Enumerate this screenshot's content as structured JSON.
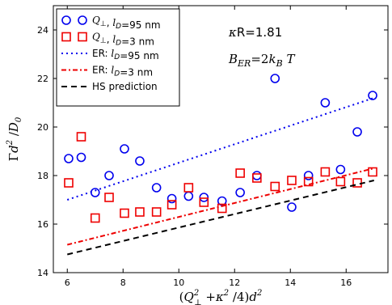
{
  "chart_data": {
    "type": "scatter",
    "xlabel": "(Q⊥² + κ²/4)d²",
    "ylabel": "Γd² / D₀",
    "xlim": [
      5.5,
      17.5
    ],
    "ylim": [
      14,
      25
    ],
    "xticks": [
      6,
      8,
      10,
      12,
      14,
      16
    ],
    "yticks": [
      14,
      16,
      18,
      20,
      22,
      24
    ],
    "grid": false,
    "legend_position": "top-left",
    "annotations": [
      "κR=1.81",
      "B_ER=2k_B T"
    ],
    "colors": {
      "blue": "#0000ee",
      "red": "#ee0000",
      "black": "#000000"
    },
    "series": [
      {
        "name": "Q⊥, l_D=95 nm",
        "marker": "circle",
        "color": "#0000ee",
        "points": [
          [
            6.05,
            18.7
          ],
          [
            6.5,
            18.75
          ],
          [
            7.0,
            17.3
          ],
          [
            7.5,
            18.0
          ],
          [
            8.05,
            19.1
          ],
          [
            8.6,
            18.6
          ],
          [
            9.2,
            17.5
          ],
          [
            9.75,
            17.05
          ],
          [
            10.35,
            17.15
          ],
          [
            10.9,
            17.1
          ],
          [
            11.55,
            16.95
          ],
          [
            12.2,
            17.3
          ],
          [
            12.8,
            18.0
          ],
          [
            13.45,
            22.0
          ],
          [
            14.05,
            16.7
          ],
          [
            14.65,
            18.0
          ],
          [
            15.25,
            21.0
          ],
          [
            15.8,
            18.25
          ],
          [
            16.4,
            19.8
          ],
          [
            16.95,
            21.3
          ]
        ]
      },
      {
        "name": "Q⊥, l_D=3 nm",
        "marker": "square",
        "color": "#ee0000",
        "points": [
          [
            6.05,
            17.7
          ],
          [
            6.5,
            19.6
          ],
          [
            7.0,
            16.25
          ],
          [
            7.5,
            17.1
          ],
          [
            8.05,
            16.45
          ],
          [
            8.6,
            16.5
          ],
          [
            9.2,
            16.5
          ],
          [
            9.75,
            16.8
          ],
          [
            10.35,
            17.5
          ],
          [
            10.9,
            16.9
          ],
          [
            11.55,
            16.65
          ],
          [
            12.2,
            18.1
          ],
          [
            12.8,
            17.9
          ],
          [
            13.45,
            17.55
          ],
          [
            14.05,
            17.8
          ],
          [
            14.65,
            17.75
          ],
          [
            15.25,
            18.15
          ],
          [
            15.8,
            17.75
          ],
          [
            16.4,
            17.7
          ],
          [
            16.95,
            18.15
          ]
        ]
      },
      {
        "name": "ER: l_D=95 nm",
        "line": "dotted",
        "color": "#0000ee",
        "points": [
          [
            6.0,
            17.0
          ],
          [
            17.0,
            21.2
          ]
        ]
      },
      {
        "name": "ER: l_D=3 nm",
        "line": "dashdot",
        "color": "#ee0000",
        "points": [
          [
            6.0,
            15.15
          ],
          [
            17.0,
            18.3
          ]
        ]
      },
      {
        "name": "HS prediction",
        "line": "dashed",
        "color": "#000000",
        "points": [
          [
            6.0,
            14.75
          ],
          [
            17.0,
            17.8
          ]
        ]
      }
    ]
  }
}
